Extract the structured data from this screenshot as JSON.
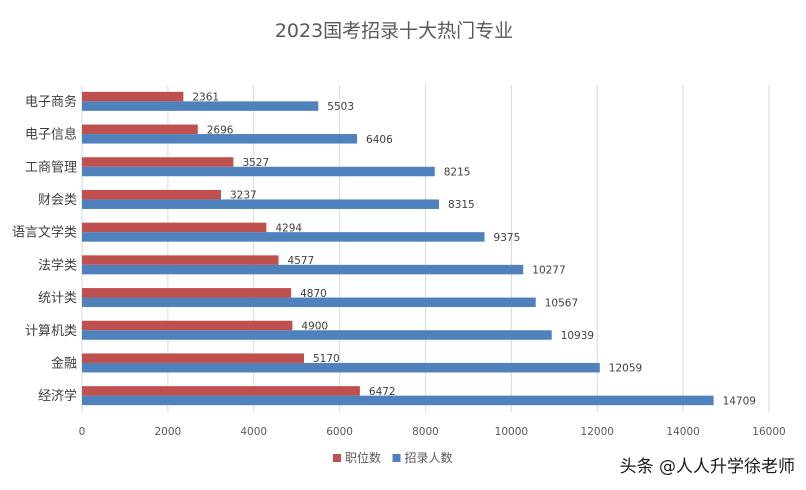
{
  "chart_data": {
    "type": "bar",
    "orientation": "horizontal",
    "title": "2023国考招录十大热门专业",
    "categories": [
      "电子商务",
      "电子信息",
      "工商管理",
      "财会类",
      "语言文学类",
      "法学类",
      "统计类",
      "计算机类",
      "金融",
      "经济学"
    ],
    "series": [
      {
        "name": "职位数",
        "color": "#c0504d",
        "values": [
          2361,
          2696,
          3527,
          3237,
          4294,
          4577,
          4870,
          4900,
          5170,
          6472
        ]
      },
      {
        "name": "招录人数",
        "color": "#4f81bd",
        "values": [
          5503,
          6406,
          8215,
          8315,
          9375,
          10277,
          10567,
          10939,
          12059,
          14709
        ]
      }
    ],
    "xlim": [
      0,
      16000
    ],
    "xticks": [
      0,
      2000,
      4000,
      6000,
      8000,
      10000,
      12000,
      14000,
      16000
    ],
    "grid": "vertical",
    "legend_position": "bottom"
  },
  "watermark": "头条 @人人升学徐老师"
}
